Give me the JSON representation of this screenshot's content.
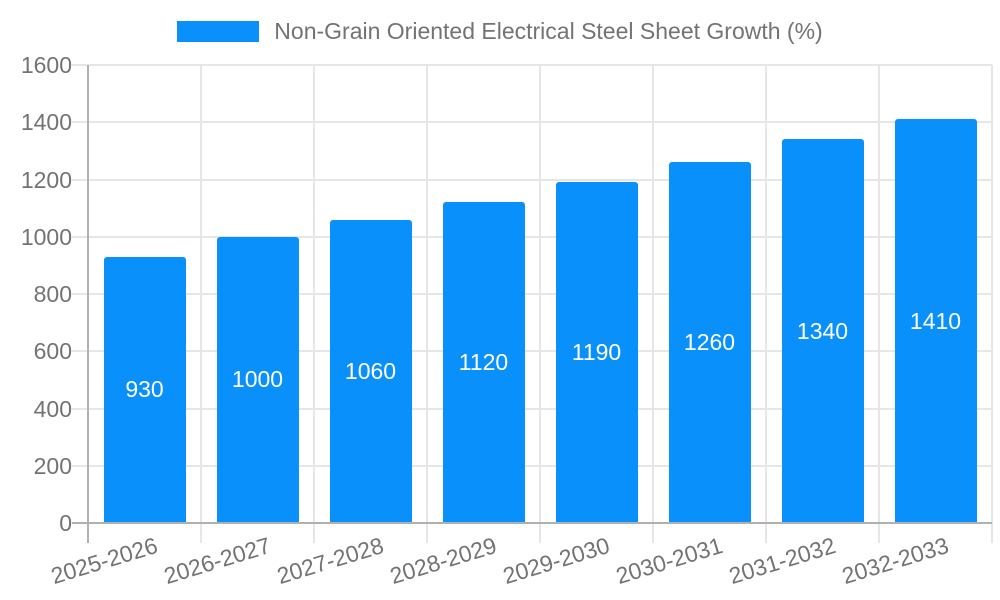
{
  "chart_data": {
    "type": "bar",
    "legend": "Non-Grain Oriented Electrical Steel Sheet Growth (%)",
    "legend_position": "top",
    "categories": [
      "2025-2026",
      "2026-2027",
      "2027-2028",
      "2028-2029",
      "2029-2030",
      "2030-2031",
      "2031-2032",
      "2032-2033"
    ],
    "values": [
      930,
      1000,
      1060,
      1120,
      1190,
      1260,
      1340,
      1410
    ],
    "xlabel": "",
    "ylabel": "",
    "ylim": [
      0,
      1600
    ],
    "yticks": [
      0,
      200,
      400,
      600,
      800,
      1000,
      1200,
      1400,
      1600
    ],
    "grid": true,
    "colors": {
      "bar": "#0a90fa",
      "bar_label": "#ffffff",
      "grid_line": "#e6e6e6",
      "axis_line": "#b0b0b0",
      "tick_line": "#dcdcdc",
      "axis_text": "#737373",
      "background": "#ffffff"
    }
  }
}
